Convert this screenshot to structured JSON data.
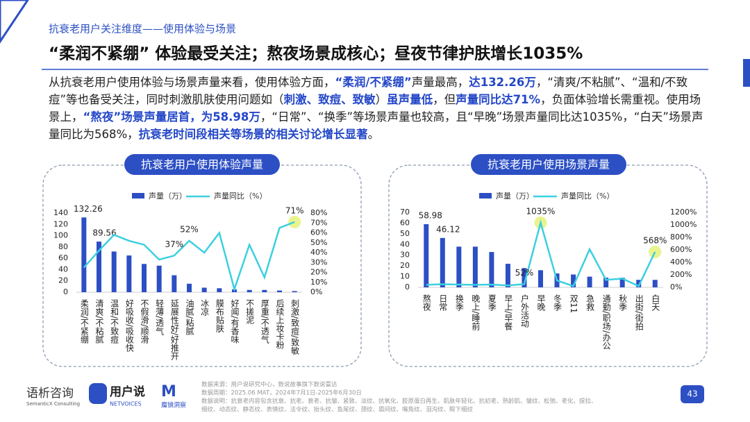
{
  "header": {
    "section": "抗衰老用户关注维度——使用体验与场景",
    "title": "“柔润不紧绷” 体验最受关注；熬夜场景成核心；昼夜节律护肤增长1035%"
  },
  "paragraph": [
    {
      "text": "从抗衰老用户使用体验与场景声量来看，使用体验方面，",
      "highlight": false
    },
    {
      "text": "“柔润/不紧绷”",
      "highlight": true
    },
    {
      "text": "声量最高，",
      "highlight": false
    },
    {
      "text": "达132.26万",
      "highlight": true
    },
    {
      "text": "，“清爽/不粘腻”、“温和/不致痘”等也备受关注，同时刺激肌肤使用问题如（",
      "highlight": false
    },
    {
      "text": "刺激、致痘、致敏",
      "highlight": true
    },
    {
      "text": "）",
      "highlight": false
    },
    {
      "text": "虽声量低",
      "highlight": true
    },
    {
      "text": "，但",
      "highlight": false
    },
    {
      "text": "声量同比达71%",
      "highlight": true
    },
    {
      "text": "，负面体验增长需重视。使用场景上，",
      "highlight": false
    },
    {
      "text": "“熬夜”场景声量居首，为58.98万",
      "highlight": true
    },
    {
      "text": "，“日常”、“换季”等场景声量也较高，且“早晚”场景声量同比达1035%，“白天”场景声量同比为568%，",
      "highlight": false
    },
    {
      "text": "抗衰老时间段相关等场景的相关讨论增长显著",
      "highlight": true
    },
    {
      "text": "。",
      "highlight": false
    }
  ],
  "chart_data": [
    {
      "type": "bar_line",
      "title": "抗衰老用户使用体验声量",
      "categories": [
        "柔润/不紧绷",
        "清爽/不粘腻",
        "温和/不致痘",
        "好吸收/吸收快",
        "不假滑/顺滑",
        "轻薄/透气",
        "延展性好/好推开",
        "油腻/粘腻",
        "冰凉",
        "膜布贴肤",
        "好闻/有香味",
        "不搓泥",
        "厚重/不透气",
        "后续上妆卡粉",
        "刺激/致痘/致敏"
      ],
      "series": [
        {
          "name": "声量（万）",
          "color": "#2c4fc4",
          "values": [
            132.26,
            89.56,
            72,
            65,
            50,
            47,
            30,
            15,
            8,
            7,
            5,
            4,
            4,
            3,
            2
          ],
          "value_labels": [
            "132.26",
            "89.56",
            null,
            null,
            null,
            null,
            null,
            null,
            null,
            null,
            null,
            null,
            null,
            null,
            null
          ]
        },
        {
          "name": "声量同比（%）",
          "color": "#3ccfe0",
          "axis": "y2",
          "values": [
            25,
            42,
            58,
            52,
            48,
            33,
            37,
            52,
            40,
            60,
            3,
            48,
            15,
            65,
            71
          ],
          "value_labels": [
            null,
            null,
            null,
            null,
            null,
            null,
            "37%",
            "52%",
            null,
            null,
            null,
            null,
            null,
            null,
            "71%"
          ]
        }
      ],
      "ylim": [
        0,
        140
      ],
      "yticks": [
        0,
        20,
        40,
        60,
        80,
        100,
        120,
        140
      ],
      "y2lim": [
        0,
        80
      ],
      "y2ticks": [
        {
          "value": 0,
          "label": "0%"
        },
        {
          "value": 10,
          "label": "10%"
        },
        {
          "value": 20,
          "label": "20%"
        },
        {
          "value": 30,
          "label": "30%"
        },
        {
          "value": 40,
          "label": "40%"
        },
        {
          "value": 50,
          "label": "50%"
        },
        {
          "value": 60,
          "label": "60%"
        },
        {
          "value": 70,
          "label": "70%"
        },
        {
          "value": 80,
          "label": "80%"
        }
      ]
    },
    {
      "type": "bar_line",
      "title": "抗衰老用户使用场景声量",
      "categories": [
        "熬夜",
        "日常",
        "换季",
        "晚上/睡前",
        "夏季",
        "早上/早餐",
        "户外活动",
        "早晚",
        "冬季",
        "双11",
        "急救",
        "通勤/职场/办公",
        "秋季",
        "出街/街拍",
        "白天"
      ],
      "series": [
        {
          "name": "声量（万）",
          "color": "#2c4fc4",
          "values": [
            58.98,
            46.12,
            38,
            38,
            33,
            22,
            18,
            16,
            13,
            12,
            10,
            9,
            9,
            7,
            7
          ],
          "value_labels": [
            "58.98",
            "46.12",
            null,
            null,
            null,
            null,
            null,
            null,
            null,
            null,
            null,
            null,
            null,
            null,
            null
          ]
        },
        {
          "name": "声量同比（%）",
          "color": "#3ccfe0",
          "axis": "y2",
          "values": [
            40,
            50,
            45,
            40,
            45,
            30,
            52,
            1035,
            110,
            20,
            610,
            120,
            140,
            20,
            568
          ],
          "value_labels": [
            null,
            null,
            null,
            null,
            null,
            null,
            "52%",
            "1035%",
            null,
            null,
            null,
            null,
            null,
            null,
            "568%"
          ]
        }
      ],
      "ylim": [
        0,
        70
      ],
      "yticks": [
        0,
        10,
        20,
        30,
        40,
        50,
        60,
        70
      ],
      "y2lim": [
        0,
        1200
      ],
      "y2ticks": [
        {
          "value": 0,
          "label": "0%"
        },
        {
          "value": 200,
          "label": "200%"
        },
        {
          "value": 400,
          "label": "400%"
        },
        {
          "value": 600,
          "label": "600%"
        },
        {
          "value": 800,
          "label": "800%"
        },
        {
          "value": 1000,
          "label": "1000%"
        },
        {
          "value": 1200,
          "label": "1200%"
        }
      ]
    }
  ],
  "footer": {
    "logos": [
      "语析咨询",
      "SemanticX Consulting",
      "用户说",
      "NETVOICES",
      "魔镜洞察"
    ],
    "notes": [
      "数据来源：用户说研究中心，数说故事旗下数说雷达",
      "数据周期：2025.06 MAT，2024年7月1日-2025年6月30日",
      "数据说明：抗衰老内容包含抗衰、抗老、衰老、抗皱、紧致、淡纹、抗氧化、胶原蛋白再生、肌肤年轻化、抗初老、熟龄肌、皱纹、松弛、老化、提拉、",
      "细纹、动态纹、静态纹、表情纹、法令纹、抬头纹、鱼尾纹、颈纹、眉间纹、嘴角纹、泪沟纹、眼下细纹"
    ],
    "page": "43"
  }
}
